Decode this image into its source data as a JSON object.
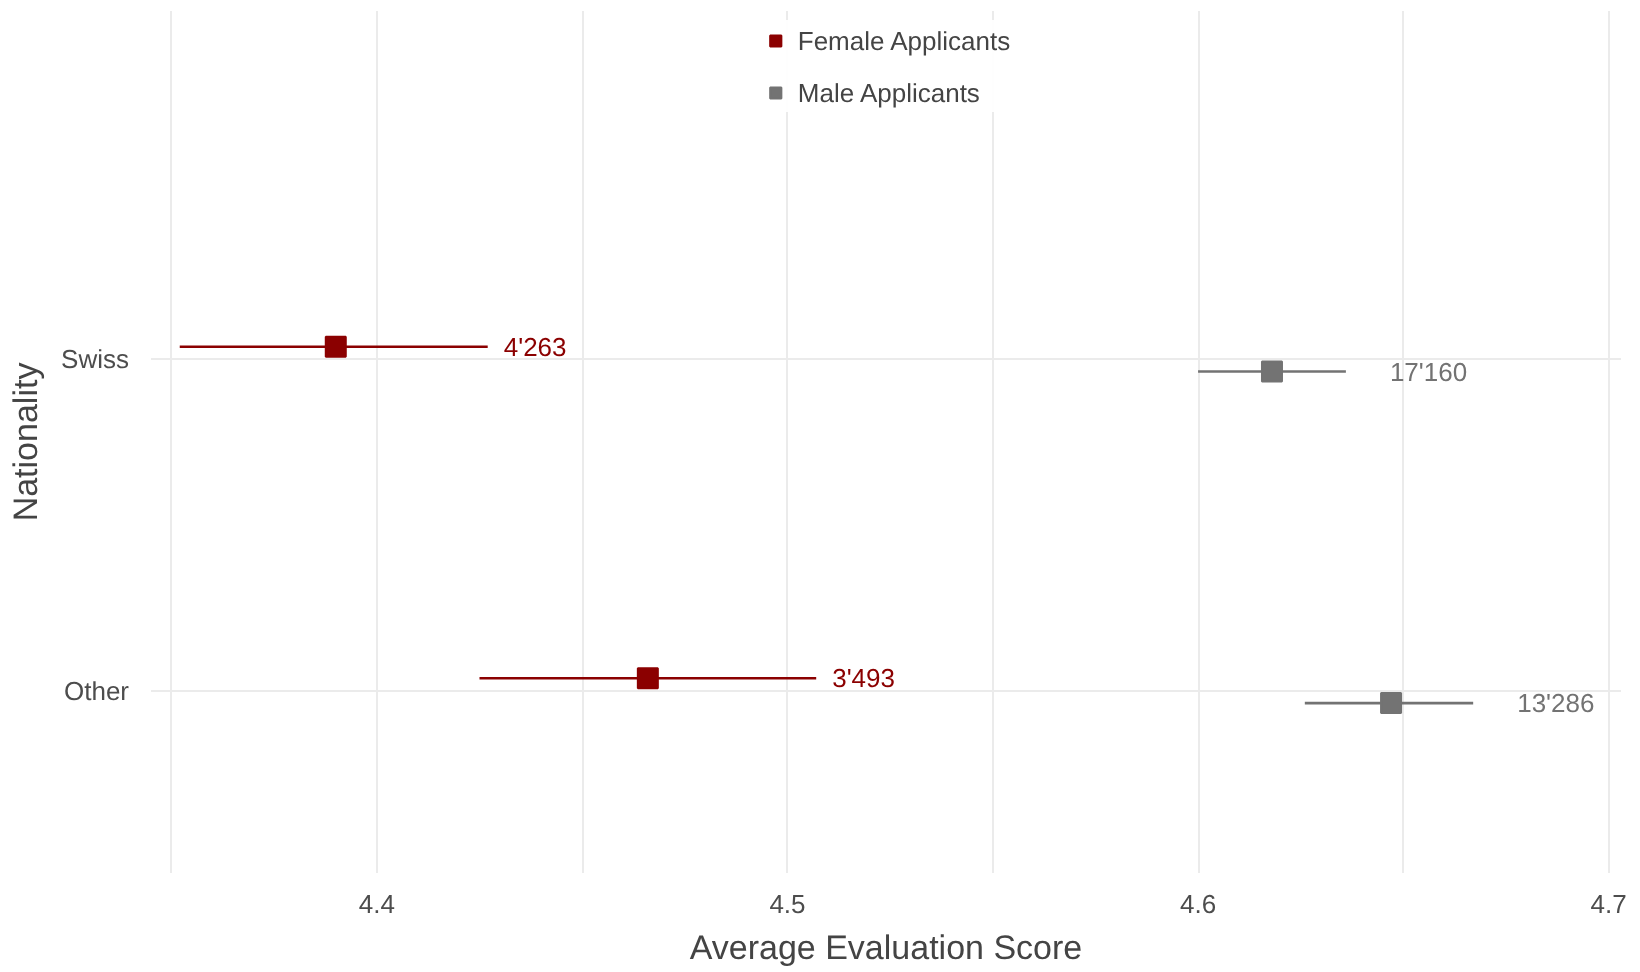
{
  "chart_data": {
    "type": "scatter",
    "orientation": "horizontal",
    "xlabel": "Average Evaluation Score",
    "ylabel": "Nationality",
    "categories": [
      "Swiss",
      "Other"
    ],
    "series": [
      {
        "name": "Female Applicants",
        "color": "#8b0000",
        "values": [
          4.39,
          4.466
        ],
        "errors": [
          [
            4.352,
            4.427
          ],
          [
            4.425,
            4.507
          ]
        ]
      },
      {
        "name": "Male Applicants",
        "color": "#737373",
        "values": [
          4.618,
          4.647
        ],
        "errors": [
          [
            4.6,
            4.636
          ],
          [
            4.626,
            4.667
          ]
        ]
      }
    ],
    "annotations": [
      "4'263",
      "3'493",
      "17'160",
      "13'286"
    ],
    "xlim": [
      4.345,
      4.703
    ],
    "xticks": [
      4.4,
      4.5,
      4.6,
      4.7
    ],
    "grid": true,
    "legend": "top",
    "marker": "square"
  }
}
